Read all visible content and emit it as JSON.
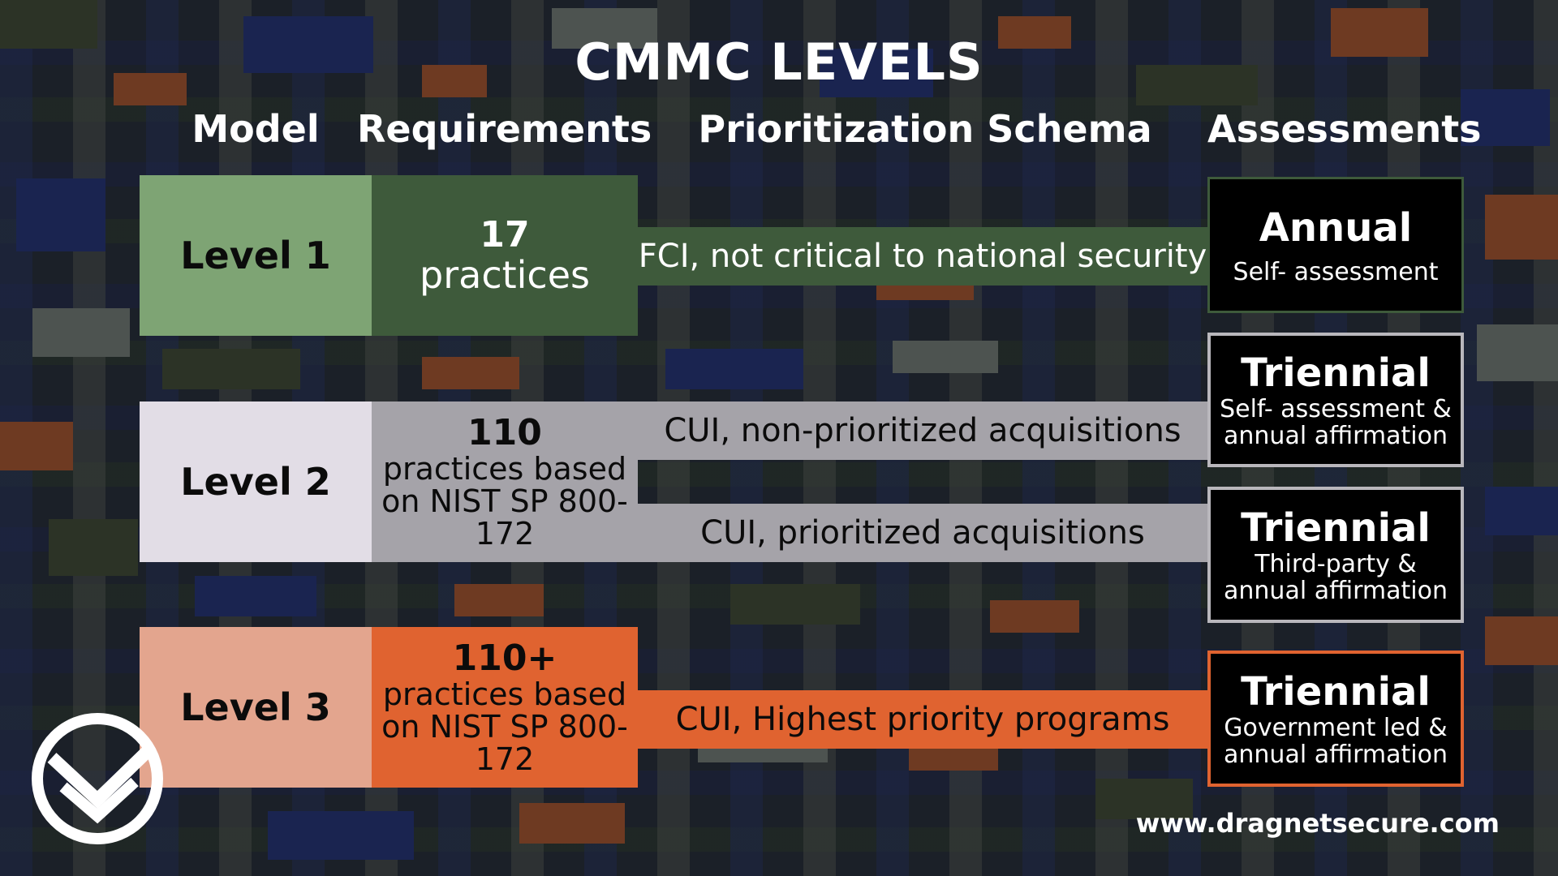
{
  "title": "CMMC LEVELS",
  "headers": {
    "model": "Model",
    "requirements": "Requirements",
    "schema": "Prioritization Schema",
    "assessments": "Assessments"
  },
  "levels": [
    {
      "model": "Level 1",
      "req_count": "17",
      "req_text": "practices",
      "schemas": [
        "FCI, not critical to national security"
      ],
      "colors": {
        "model_bg": "#7ea474",
        "req_bg": "#3e5a3b",
        "schema_bg": "#3e5a3b",
        "text": "#ffffff"
      }
    },
    {
      "model": "Level 2",
      "req_count": "110",
      "req_text": "practices based on NIST SP 800-172",
      "schemas": [
        "CUI, non-prioritized acquisitions",
        "CUI, prioritized acquisitions"
      ],
      "colors": {
        "model_bg": "#e2dde6",
        "req_bg": "#a5a3a9",
        "schema_bg": "#a5a3a9",
        "text": "#0b0b0b"
      }
    },
    {
      "model": "Level 3",
      "req_count": "110+",
      "req_text": "practices based on NIST SP 800-172",
      "schemas": [
        "CUI, Highest priority programs"
      ],
      "colors": {
        "model_bg": "#e3a58e",
        "req_bg": "#e06330",
        "schema_bg": "#e06330",
        "text": "#0b0b0b"
      }
    }
  ],
  "assessments": [
    {
      "title": "Annual",
      "desc": "Self- assessment",
      "border": "#3e5a3b"
    },
    {
      "title": "Triennial",
      "desc": "Self- assessment & annual affirmation",
      "border": "#b9b7bc"
    },
    {
      "title": "Triennial",
      "desc": "Third-party & annual affirmation",
      "border": "#b9b7bc"
    },
    {
      "title": "Triennial",
      "desc": "Government led & annual affirmation",
      "border": "#e06330"
    }
  ],
  "footer": {
    "url": "www.dragnetsecure.com"
  },
  "logo": {
    "icon": "check-shield-logo-icon"
  }
}
